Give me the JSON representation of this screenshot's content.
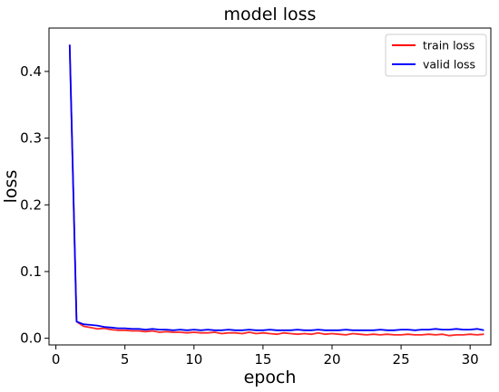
{
  "chart_data": {
    "type": "line",
    "title": "model loss",
    "xlabel": "epoch",
    "ylabel": "loss",
    "xlim": [
      -0.5,
      31.5
    ],
    "ylim": [
      -0.01,
      0.465
    ],
    "xticks": [
      0,
      5,
      10,
      15,
      20,
      25,
      30
    ],
    "yticks": [
      0.0,
      0.1,
      0.2,
      0.3,
      0.4
    ],
    "xtick_labels": [
      "0",
      "5",
      "10",
      "15",
      "20",
      "25",
      "30"
    ],
    "ytick_labels": [
      "0.0",
      "0.1",
      "0.2",
      "0.3",
      "0.4"
    ],
    "grid": false,
    "legend_position": "top-right",
    "series": [
      {
        "name": "train loss",
        "color": "#ff0000",
        "x": [
          1,
          1.5,
          2,
          2.5,
          3,
          3.5,
          4,
          4.5,
          5,
          5.5,
          6,
          6.5,
          7,
          7.5,
          8,
          8.5,
          9,
          9.5,
          10,
          10.5,
          11,
          11.5,
          12,
          12.5,
          13,
          13.5,
          14,
          14.5,
          15,
          15.5,
          16,
          16.5,
          17,
          17.5,
          18,
          18.5,
          19,
          19.5,
          20,
          20.5,
          21,
          21.5,
          22,
          22.5,
          23,
          23.5,
          24,
          24.5,
          25,
          25.5,
          26,
          26.5,
          27,
          27.5,
          28,
          28.5,
          29,
          29.5,
          30,
          30.5,
          31
        ],
        "values": [
          0.44,
          0.025,
          0.018,
          0.016,
          0.014,
          0.015,
          0.013,
          0.012,
          0.012,
          0.011,
          0.011,
          0.01,
          0.011,
          0.009,
          0.01,
          0.009,
          0.009,
          0.008,
          0.009,
          0.008,
          0.008,
          0.009,
          0.007,
          0.008,
          0.008,
          0.007,
          0.009,
          0.007,
          0.008,
          0.007,
          0.006,
          0.008,
          0.007,
          0.006,
          0.007,
          0.006,
          0.008,
          0.006,
          0.007,
          0.006,
          0.005,
          0.007,
          0.006,
          0.005,
          0.006,
          0.005,
          0.006,
          0.005,
          0.005,
          0.006,
          0.005,
          0.005,
          0.006,
          0.005,
          0.006,
          0.004,
          0.005,
          0.005,
          0.006,
          0.005,
          0.006
        ]
      },
      {
        "name": "valid loss",
        "color": "#0000ff",
        "x": [
          1,
          1.5,
          2,
          2.5,
          3,
          3.5,
          4,
          4.5,
          5,
          5.5,
          6,
          6.5,
          7,
          7.5,
          8,
          8.5,
          9,
          9.5,
          10,
          10.5,
          11,
          11.5,
          12,
          12.5,
          13,
          13.5,
          14,
          14.5,
          15,
          15.5,
          16,
          16.5,
          17,
          17.5,
          18,
          18.5,
          19,
          19.5,
          20,
          20.5,
          21,
          21.5,
          22,
          22.5,
          23,
          23.5,
          24,
          24.5,
          25,
          25.5,
          26,
          26.5,
          27,
          27.5,
          28,
          28.5,
          29,
          29.5,
          30,
          30.5,
          31
        ],
        "values": [
          0.44,
          0.025,
          0.021,
          0.02,
          0.019,
          0.017,
          0.016,
          0.015,
          0.015,
          0.014,
          0.014,
          0.013,
          0.014,
          0.013,
          0.013,
          0.012,
          0.013,
          0.012,
          0.013,
          0.012,
          0.013,
          0.012,
          0.012,
          0.013,
          0.012,
          0.012,
          0.013,
          0.012,
          0.012,
          0.013,
          0.012,
          0.012,
          0.012,
          0.013,
          0.012,
          0.012,
          0.013,
          0.012,
          0.012,
          0.012,
          0.013,
          0.012,
          0.012,
          0.012,
          0.012,
          0.013,
          0.012,
          0.012,
          0.013,
          0.013,
          0.012,
          0.013,
          0.013,
          0.014,
          0.013,
          0.013,
          0.014,
          0.013,
          0.013,
          0.014,
          0.012
        ]
      }
    ]
  }
}
